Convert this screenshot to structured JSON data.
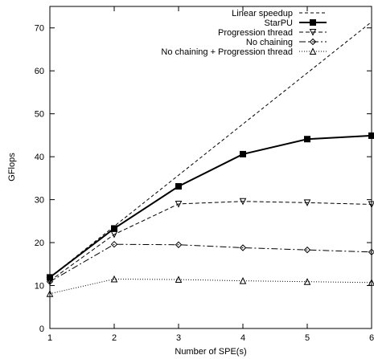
{
  "chart_data": {
    "type": "line",
    "xlabel": "Number of SPE(s)",
    "ylabel": "GFlops",
    "xlim": [
      1,
      6
    ],
    "ylim": [
      0,
      75
    ],
    "xticks": [
      "1",
      "2",
      "3",
      "4",
      "5",
      "6"
    ],
    "yticks": [
      "0",
      "10",
      "20",
      "30",
      "40",
      "50",
      "60",
      "70"
    ],
    "grid": false,
    "legend_position": "top-right",
    "x": [
      1,
      2,
      3,
      4,
      5,
      6
    ],
    "series": [
      {
        "name": "Linear speedup",
        "values": [
          11.9,
          23.8,
          35.7,
          47.6,
          59.5,
          71.4
        ],
        "marker": "none",
        "dash": "4,3",
        "width": 1
      },
      {
        "name": "StarPU",
        "values": [
          11.9,
          23.3,
          33.1,
          40.6,
          44.1,
          44.9
        ],
        "marker": "square",
        "dash": "",
        "width": 2
      },
      {
        "name": "Progression thread",
        "values": [
          11.1,
          21.9,
          29.0,
          29.6,
          29.3,
          28.9
        ],
        "marker": "triangle-down",
        "dash": "5,3",
        "width": 1
      },
      {
        "name": "No chaining",
        "values": [
          10.9,
          19.6,
          19.5,
          18.8,
          18.3,
          17.8
        ],
        "marker": "diamond",
        "dash": "8,3,2,3",
        "width": 1
      },
      {
        "name": "No chaining + Progression thread",
        "values": [
          8.1,
          11.5,
          11.4,
          11.1,
          10.9,
          10.7
        ],
        "marker": "triangle-up",
        "dash": "1,2",
        "width": 1
      }
    ]
  }
}
